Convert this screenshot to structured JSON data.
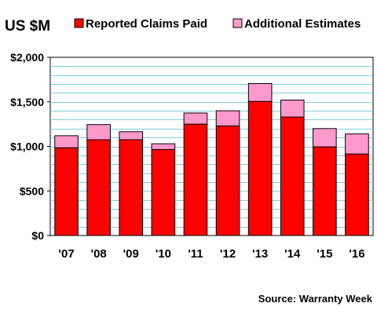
{
  "chart_data": {
    "type": "bar",
    "stacked": true,
    "unit_label": "US $M",
    "source": "Source: Warranty Week",
    "categories": [
      "'07",
      "'08",
      "'09",
      "'10",
      "'11",
      "'12",
      "'13",
      "'14",
      "'15",
      "'16"
    ],
    "series": [
      {
        "name": "Reported Claims Paid",
        "color": "#ff0000",
        "values": [
          985,
          1075,
          1075,
          965,
          1250,
          1230,
          1505,
          1330,
          995,
          915
        ]
      },
      {
        "name": "Additional Estimates",
        "color": "#ff99cc",
        "values": [
          135,
          170,
          90,
          65,
          125,
          170,
          200,
          190,
          205,
          225
        ]
      }
    ],
    "ylim": [
      0,
      2000
    ],
    "yticks": [
      {
        "value": 0,
        "label": "$0"
      },
      {
        "value": 500,
        "label": "$500"
      },
      {
        "value": 1000,
        "label": "$1,000"
      },
      {
        "value": 1500,
        "label": "$1,500"
      },
      {
        "value": 2000,
        "label": "$2,000"
      }
    ],
    "grid": true,
    "legend": "top",
    "colors": {
      "grid": "#7fcfe0",
      "background": "#ffffff",
      "outline": "#000000"
    }
  }
}
